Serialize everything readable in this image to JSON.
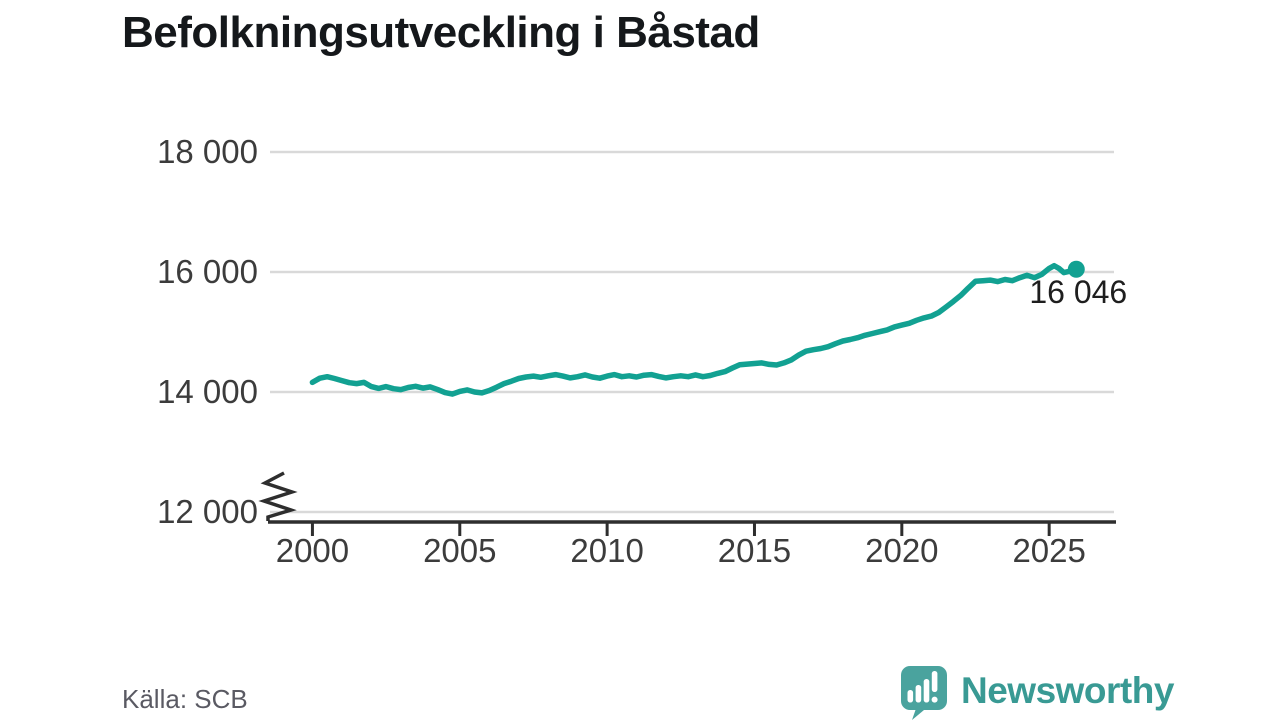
{
  "title": "Befolkningsutveckling i Båstad",
  "source": "Källa: SCB",
  "branding": {
    "name": "Newsworthy",
    "icon": "newsworthy-speech-bubble-barchart-icon",
    "text_color": "#399a94",
    "icon_color": "#4aa39e"
  },
  "colors": {
    "background": "#ffffff",
    "line": "#12a192",
    "marker": "#12a192",
    "grid": "#d9d9d9",
    "axis": "#2e2e2e",
    "tick_text": "#3c3c3c",
    "title_text": "#15181b",
    "annotation_text": "#1e1e1e",
    "source_text": "#5a5a63"
  },
  "chart_data": {
    "type": "line",
    "title": "Befolkningsutveckling i Båstad",
    "source": "Källa: SCB",
    "xlabel": "",
    "ylabel": "",
    "grid": "horizontal",
    "legend": "none",
    "x_ticks": [
      2000,
      2005,
      2010,
      2015,
      2020,
      2025
    ],
    "y_ticks": [
      12000,
      14000,
      16000,
      18000
    ],
    "y_tick_labels": [
      "12 000",
      "14 000",
      "16 000",
      "18 000"
    ],
    "xlim": [
      1998.56,
      2027.2
    ],
    "ylim": [
      12000,
      18000
    ],
    "y_axis_break_below": 12000,
    "annotation": {
      "label": "16 046",
      "x": 2025.92,
      "y": 16046
    },
    "last_value": 16046,
    "series": [
      {
        "name": "Befolkning",
        "x": [
          2000.0,
          2000.25,
          2000.5,
          2000.75,
          2001.0,
          2001.25,
          2001.5,
          2001.75,
          2002.0,
          2002.25,
          2002.5,
          2002.75,
          2003.0,
          2003.25,
          2003.5,
          2003.75,
          2004.0,
          2004.25,
          2004.5,
          2004.75,
          2005.0,
          2005.25,
          2005.5,
          2005.75,
          2006.0,
          2006.25,
          2006.5,
          2006.75,
          2007.0,
          2007.25,
          2007.5,
          2007.75,
          2008.0,
          2008.25,
          2008.5,
          2008.75,
          2009.0,
          2009.25,
          2009.5,
          2009.75,
          2010.0,
          2010.25,
          2010.5,
          2010.75,
          2011.0,
          2011.25,
          2011.5,
          2011.75,
          2012.0,
          2012.25,
          2012.5,
          2012.75,
          2013.0,
          2013.25,
          2013.5,
          2013.75,
          2014.0,
          2014.25,
          2014.5,
          2014.75,
          2015.0,
          2015.25,
          2015.5,
          2015.75,
          2016.0,
          2016.25,
          2016.5,
          2016.75,
          2017.0,
          2017.25,
          2017.5,
          2017.75,
          2018.0,
          2018.25,
          2018.5,
          2018.75,
          2019.0,
          2019.25,
          2019.5,
          2019.75,
          2020.0,
          2020.25,
          2020.5,
          2020.75,
          2021.0,
          2021.25,
          2021.5,
          2021.75,
          2022.0,
          2022.25,
          2022.5,
          2022.75,
          2023.0,
          2023.25,
          2023.5,
          2023.75,
          2024.0,
          2024.25,
          2024.5,
          2024.75,
          2025.0,
          2025.17,
          2025.33,
          2025.5,
          2025.67,
          2025.92
        ],
        "values": [
          14160,
          14230,
          14255,
          14225,
          14190,
          14155,
          14140,
          14160,
          14090,
          14060,
          14090,
          14055,
          14040,
          14075,
          14095,
          14065,
          14085,
          14040,
          13990,
          13965,
          14010,
          14035,
          14000,
          13985,
          14025,
          14080,
          14140,
          14180,
          14225,
          14250,
          14265,
          14245,
          14270,
          14290,
          14265,
          14235,
          14255,
          14285,
          14250,
          14230,
          14265,
          14290,
          14255,
          14270,
          14250,
          14280,
          14290,
          14260,
          14235,
          14255,
          14270,
          14255,
          14285,
          14255,
          14275,
          14310,
          14340,
          14400,
          14455,
          14465,
          14475,
          14485,
          14460,
          14450,
          14485,
          14535,
          14615,
          14680,
          14705,
          14725,
          14755,
          14805,
          14850,
          14875,
          14905,
          14945,
          14975,
          15005,
          15035,
          15085,
          15115,
          15145,
          15195,
          15235,
          15265,
          15325,
          15415,
          15510,
          15610,
          15730,
          15845,
          15855,
          15865,
          15840,
          15875,
          15855,
          15905,
          15945,
          15905,
          15960,
          16060,
          16105,
          16060,
          15990,
          16010,
          16046
        ]
      }
    ]
  }
}
